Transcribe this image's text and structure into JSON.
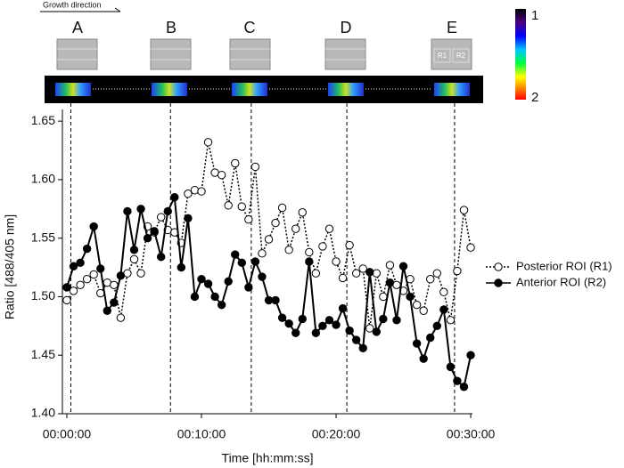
{
  "chart_data": {
    "type": "line",
    "direction_label": "Growth direction",
    "colorbar_range": [
      1,
      2
    ],
    "roi_labels": [
      "R1",
      "R2"
    ],
    "markers": [
      {
        "label": "A",
        "x": 0.3
      },
      {
        "label": "B",
        "x": 7.7
      },
      {
        "label": "C",
        "x": 13.7
      },
      {
        "label": "D",
        "x": 20.8
      },
      {
        "label": "E",
        "x": 28.8
      }
    ],
    "x_label": "Time [hh:mm:ss]",
    "y_label": "Ratio [488/405 nm]",
    "x": [
      0,
      0.5,
      1,
      1.5,
      2,
      2.5,
      3,
      3.5,
      4,
      4.5,
      5,
      5.5,
      6,
      6.5,
      7,
      7.5,
      8,
      8.5,
      9,
      9.5,
      10,
      10.5,
      11,
      11.5,
      12,
      12.5,
      13,
      13.5,
      14,
      14.5,
      15,
      15.5,
      16,
      16.5,
      17,
      17.5,
      18,
      18.5,
      19,
      19.5,
      20,
      20.5,
      21,
      21.5,
      22,
      22.5,
      23,
      23.5,
      24,
      24.5,
      25,
      25.5,
      26,
      26.5,
      27,
      27.5,
      28,
      28.5,
      29,
      29.5,
      30
    ],
    "series": [
      {
        "name": "Posterior ROI (R1)",
        "color": "#000000",
        "line_style": "dotted",
        "marker_fill": "#ffffff",
        "values": [
          1.497,
          1.505,
          1.51,
          1.515,
          1.519,
          1.503,
          1.512,
          1.51,
          1.482,
          1.52,
          1.532,
          1.52,
          1.56,
          1.555,
          1.568,
          1.557,
          1.555,
          1.546,
          1.588,
          1.591,
          1.59,
          1.632,
          1.606,
          1.604,
          1.578,
          1.614,
          1.577,
          1.566,
          1.611,
          1.537,
          1.549,
          1.563,
          1.576,
          1.54,
          1.558,
          1.572,
          1.538,
          1.52,
          1.543,
          1.558,
          1.53,
          1.516,
          1.544,
          1.52,
          1.524,
          1.473,
          1.52,
          1.5,
          1.527,
          1.51,
          1.505,
          1.515,
          1.493,
          1.488,
          1.515,
          1.52,
          1.504,
          1.48,
          1.522,
          1.574,
          1.542
        ]
      },
      {
        "name": "Anterior ROI (R2)",
        "color": "#000000",
        "line_style": "solid",
        "marker_fill": "#000000",
        "values": [
          1.508,
          1.526,
          1.529,
          1.541,
          1.56,
          1.524,
          1.488,
          1.495,
          1.518,
          1.573,
          1.54,
          1.575,
          1.55,
          1.556,
          1.534,
          1.573,
          1.585,
          1.525,
          1.567,
          1.5,
          1.515,
          1.511,
          1.5,
          1.493,
          1.513,
          1.536,
          1.529,
          1.508,
          1.53,
          1.517,
          1.497,
          1.497,
          1.482,
          1.477,
          1.469,
          1.481,
          1.53,
          1.469,
          1.475,
          1.48,
          1.476,
          1.49,
          1.471,
          1.463,
          1.456,
          1.521,
          1.47,
          1.481,
          1.512,
          1.48,
          1.526,
          1.5,
          1.46,
          1.447,
          1.465,
          1.475,
          1.489,
          1.44,
          1.428,
          1.423,
          1.45
        ]
      }
    ],
    "xlim": [
      -0.33,
      30.13
    ],
    "ylim": [
      1.4,
      1.66
    ],
    "xticks": [
      {
        "value": 0,
        "label": "00:00:00"
      },
      {
        "value": 10,
        "label": "00:10:00"
      },
      {
        "value": 20,
        "label": "00:20:00"
      },
      {
        "value": 30,
        "label": "00:30:00"
      }
    ],
    "yticks": [
      {
        "value": 1.4,
        "label": "1.40"
      },
      1.45,
      {
        "value": 1.5,
        "label": "1.50"
      },
      1.55,
      {
        "value": 1.6,
        "label": "1.60"
      },
      1.65
    ],
    "legend": "right"
  }
}
